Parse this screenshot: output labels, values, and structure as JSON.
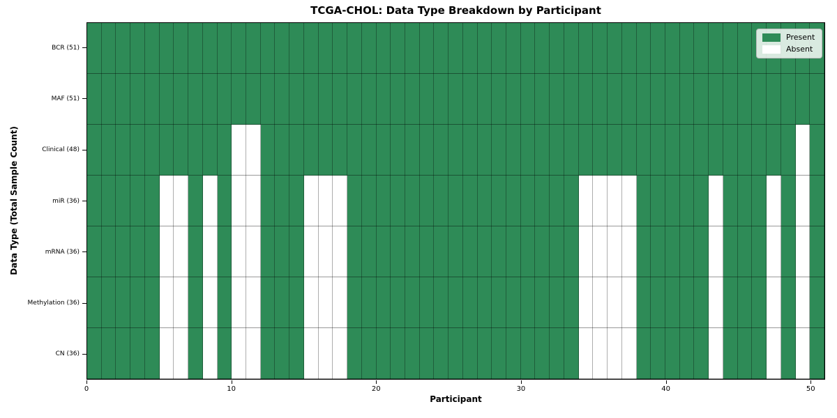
{
  "chart_data": {
    "type": "heatmap",
    "title": "TCGA-CHOL: Data Type Breakdown by Participant",
    "xlabel": "Participant",
    "ylabel": "Data Type (Total Sample Count)",
    "x_ticks": [
      0,
      10,
      20,
      30,
      40,
      50
    ],
    "x_range": [
      0,
      51
    ],
    "n_participants": 51,
    "grid": true,
    "legend_position": "upper right",
    "rows": [
      {
        "label": "BCR (51)",
        "present_count": 51,
        "absent_participants": []
      },
      {
        "label": "MAF (51)",
        "present_count": 51,
        "absent_participants": []
      },
      {
        "label": "Clinical (48)",
        "present_count": 48,
        "absent_participants": [
          10,
          11,
          49
        ]
      },
      {
        "label": "miR (36)",
        "present_count": 36,
        "absent_participants": [
          5,
          6,
          8,
          10,
          11,
          15,
          16,
          17,
          34,
          35,
          36,
          37,
          43,
          47,
          49
        ]
      },
      {
        "label": "mRNA (36)",
        "present_count": 36,
        "absent_participants": [
          5,
          6,
          8,
          10,
          11,
          15,
          16,
          17,
          34,
          35,
          36,
          37,
          43,
          47,
          49
        ]
      },
      {
        "label": "Methylation (36)",
        "present_count": 36,
        "absent_participants": [
          5,
          6,
          8,
          10,
          11,
          15,
          16,
          17,
          34,
          35,
          36,
          37,
          43,
          47,
          49
        ]
      },
      {
        "label": "CN (36)",
        "present_count": 36,
        "absent_participants": [
          5,
          6,
          8,
          10,
          11,
          15,
          16,
          17,
          34,
          35,
          36,
          37,
          43,
          47,
          49
        ]
      }
    ],
    "legend": [
      {
        "label": "Present",
        "color": "#2E8B57"
      },
      {
        "label": "Absent",
        "color": "#FFFFFF"
      }
    ],
    "colors": {
      "present": "#2E8B57",
      "absent": "#FFFFFF",
      "grid_line": "rgba(0,0,0,0.32)",
      "axis": "#000000"
    }
  }
}
